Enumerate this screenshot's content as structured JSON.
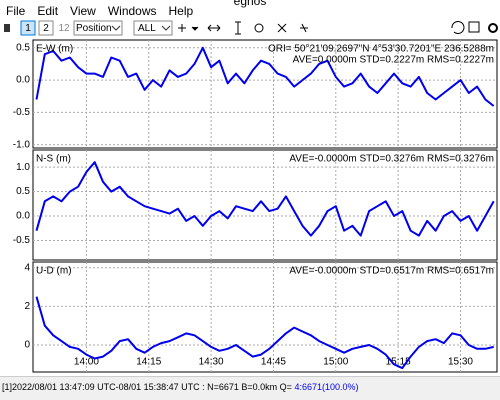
{
  "window": {
    "title": "egnos"
  },
  "menu": [
    "File",
    "Edit",
    "View",
    "Windows",
    "Help"
  ],
  "toolbar": {
    "buttons": [
      "1",
      "2",
      "12"
    ],
    "plot_type": "Position",
    "satellite": "ALL"
  },
  "chart_data": {
    "type": "line",
    "color": "#0000ee",
    "grid": true,
    "x": [
      "13:48",
      "13:50",
      "13:52",
      "13:54",
      "13:56",
      "13:58",
      "14:00",
      "14:02",
      "14:04",
      "14:06",
      "14:08",
      "14:10",
      "14:12",
      "14:14",
      "14:16",
      "14:18",
      "14:20",
      "14:22",
      "14:24",
      "14:26",
      "14:28",
      "14:30",
      "14:32",
      "14:34",
      "14:36",
      "14:38",
      "14:40",
      "14:42",
      "14:44",
      "14:46",
      "14:48",
      "14:50",
      "14:52",
      "14:54",
      "14:56",
      "14:58",
      "15:00",
      "15:02",
      "15:04",
      "15:06",
      "15:08",
      "15:10",
      "15:12",
      "15:14",
      "15:16",
      "15:18",
      "15:20",
      "15:22",
      "15:24",
      "15:26",
      "15:28",
      "15:30",
      "15:32",
      "15:34",
      "15:36",
      "15:38"
    ],
    "xlim": [
      "13:47:09",
      "15:38:47"
    ],
    "xticks": [
      "14:00",
      "14:15",
      "14:30",
      "14:45",
      "15:00",
      "15:15",
      "15:30"
    ],
    "panels": [
      {
        "ylabel": "E-W (m)",
        "annotations": [
          "ORI= 50°21'09.2697\"N    4°53'30.7201\"E 236.5288m",
          "AVE=0.0000m STD=0.2227m RMS=0.2227m"
        ],
        "ylim": [
          -1.05,
          0.62
        ],
        "yticks": [
          0.5,
          {
            "value": 0,
            "label": "0.0"
          },
          -0.5,
          {
            "value": -1,
            "label": "-1.0"
          }
        ],
        "values": [
          -0.3,
          0.4,
          0.45,
          0.3,
          0.35,
          0.2,
          0.1,
          0.1,
          0.05,
          0.35,
          0.3,
          0.05,
          0.1,
          -0.15,
          0.0,
          -0.1,
          0.15,
          0.05,
          0.1,
          0.25,
          0.5,
          0.2,
          0.3,
          -0.05,
          0.1,
          -0.05,
          0.15,
          0.3,
          0.25,
          0.1,
          0.05,
          -0.1,
          0.0,
          0.1,
          0.25,
          0.3,
          0.05,
          -0.1,
          -0.05,
          0.1,
          -0.1,
          -0.2,
          -0.05,
          0.1,
          -0.05,
          -0.1,
          0.05,
          -0.2,
          -0.3,
          -0.2,
          -0.1,
          0.0,
          -0.2,
          -0.1,
          -0.3,
          -0.4
        ]
      },
      {
        "ylabel": "N-S (m)",
        "annotations": [
          "AVE=-0.0000m STD=0.3276m RMS=0.3276m"
        ],
        "ylim": [
          -0.9,
          1.35
        ],
        "yticks": [
          {
            "value": 1,
            "label": "1.0"
          },
          0.5,
          {
            "value": 0,
            "label": "0.0"
          },
          -0.5
        ],
        "values": [
          -0.3,
          0.3,
          0.4,
          0.3,
          0.5,
          0.6,
          0.9,
          1.1,
          0.7,
          0.5,
          0.6,
          0.4,
          0.3,
          0.2,
          0.15,
          0.1,
          0.05,
          0.15,
          -0.1,
          0.0,
          -0.2,
          0.0,
          0.1,
          -0.05,
          0.2,
          0.15,
          0.1,
          0.3,
          0.1,
          0.15,
          0.4,
          0.1,
          -0.2,
          -0.4,
          -0.2,
          0.1,
          0.2,
          -0.3,
          -0.2,
          -0.4,
          0.1,
          0.2,
          0.3,
          0.0,
          0.1,
          -0.3,
          -0.4,
          -0.1,
          -0.3,
          0.0,
          0.1,
          -0.1,
          0.0,
          -0.3,
          0.0,
          0.3
        ]
      },
      {
        "ylabel": "U-D (m)",
        "annotations": [
          "AVE=-0.0000m STD=0.6517m RMS=0.6517m"
        ],
        "ylim": [
          -1.4,
          4.3
        ],
        "yticks": [
          4,
          2,
          0
        ],
        "values": [
          2.5,
          1.0,
          0.5,
          0.2,
          -0.1,
          -0.2,
          -0.5,
          -0.7,
          -0.6,
          -0.3,
          0.2,
          0.3,
          -0.2,
          -0.4,
          -0.1,
          0.1,
          0.2,
          0.4,
          0.6,
          0.5,
          0.2,
          -0.1,
          -0.3,
          -0.2,
          0.0,
          -0.3,
          -0.6,
          -0.5,
          -0.2,
          0.2,
          0.6,
          0.9,
          0.7,
          0.5,
          0.2,
          0.0,
          -0.2,
          -0.4,
          -0.2,
          -0.1,
          0.0,
          -0.2,
          -0.5,
          -1.0,
          -1.2,
          -0.6,
          -0.1,
          0.2,
          0.3,
          0.1,
          0.6,
          0.5,
          0.0,
          -0.2,
          -0.2,
          -0.1
        ]
      }
    ]
  },
  "status": {
    "text": "[1]2022/08/01 13:47:09 UTC-08/01 15:38:47 UTC : N=6671 B=0.0km Q= ",
    "quality": "4:6671(100.0%)"
  }
}
